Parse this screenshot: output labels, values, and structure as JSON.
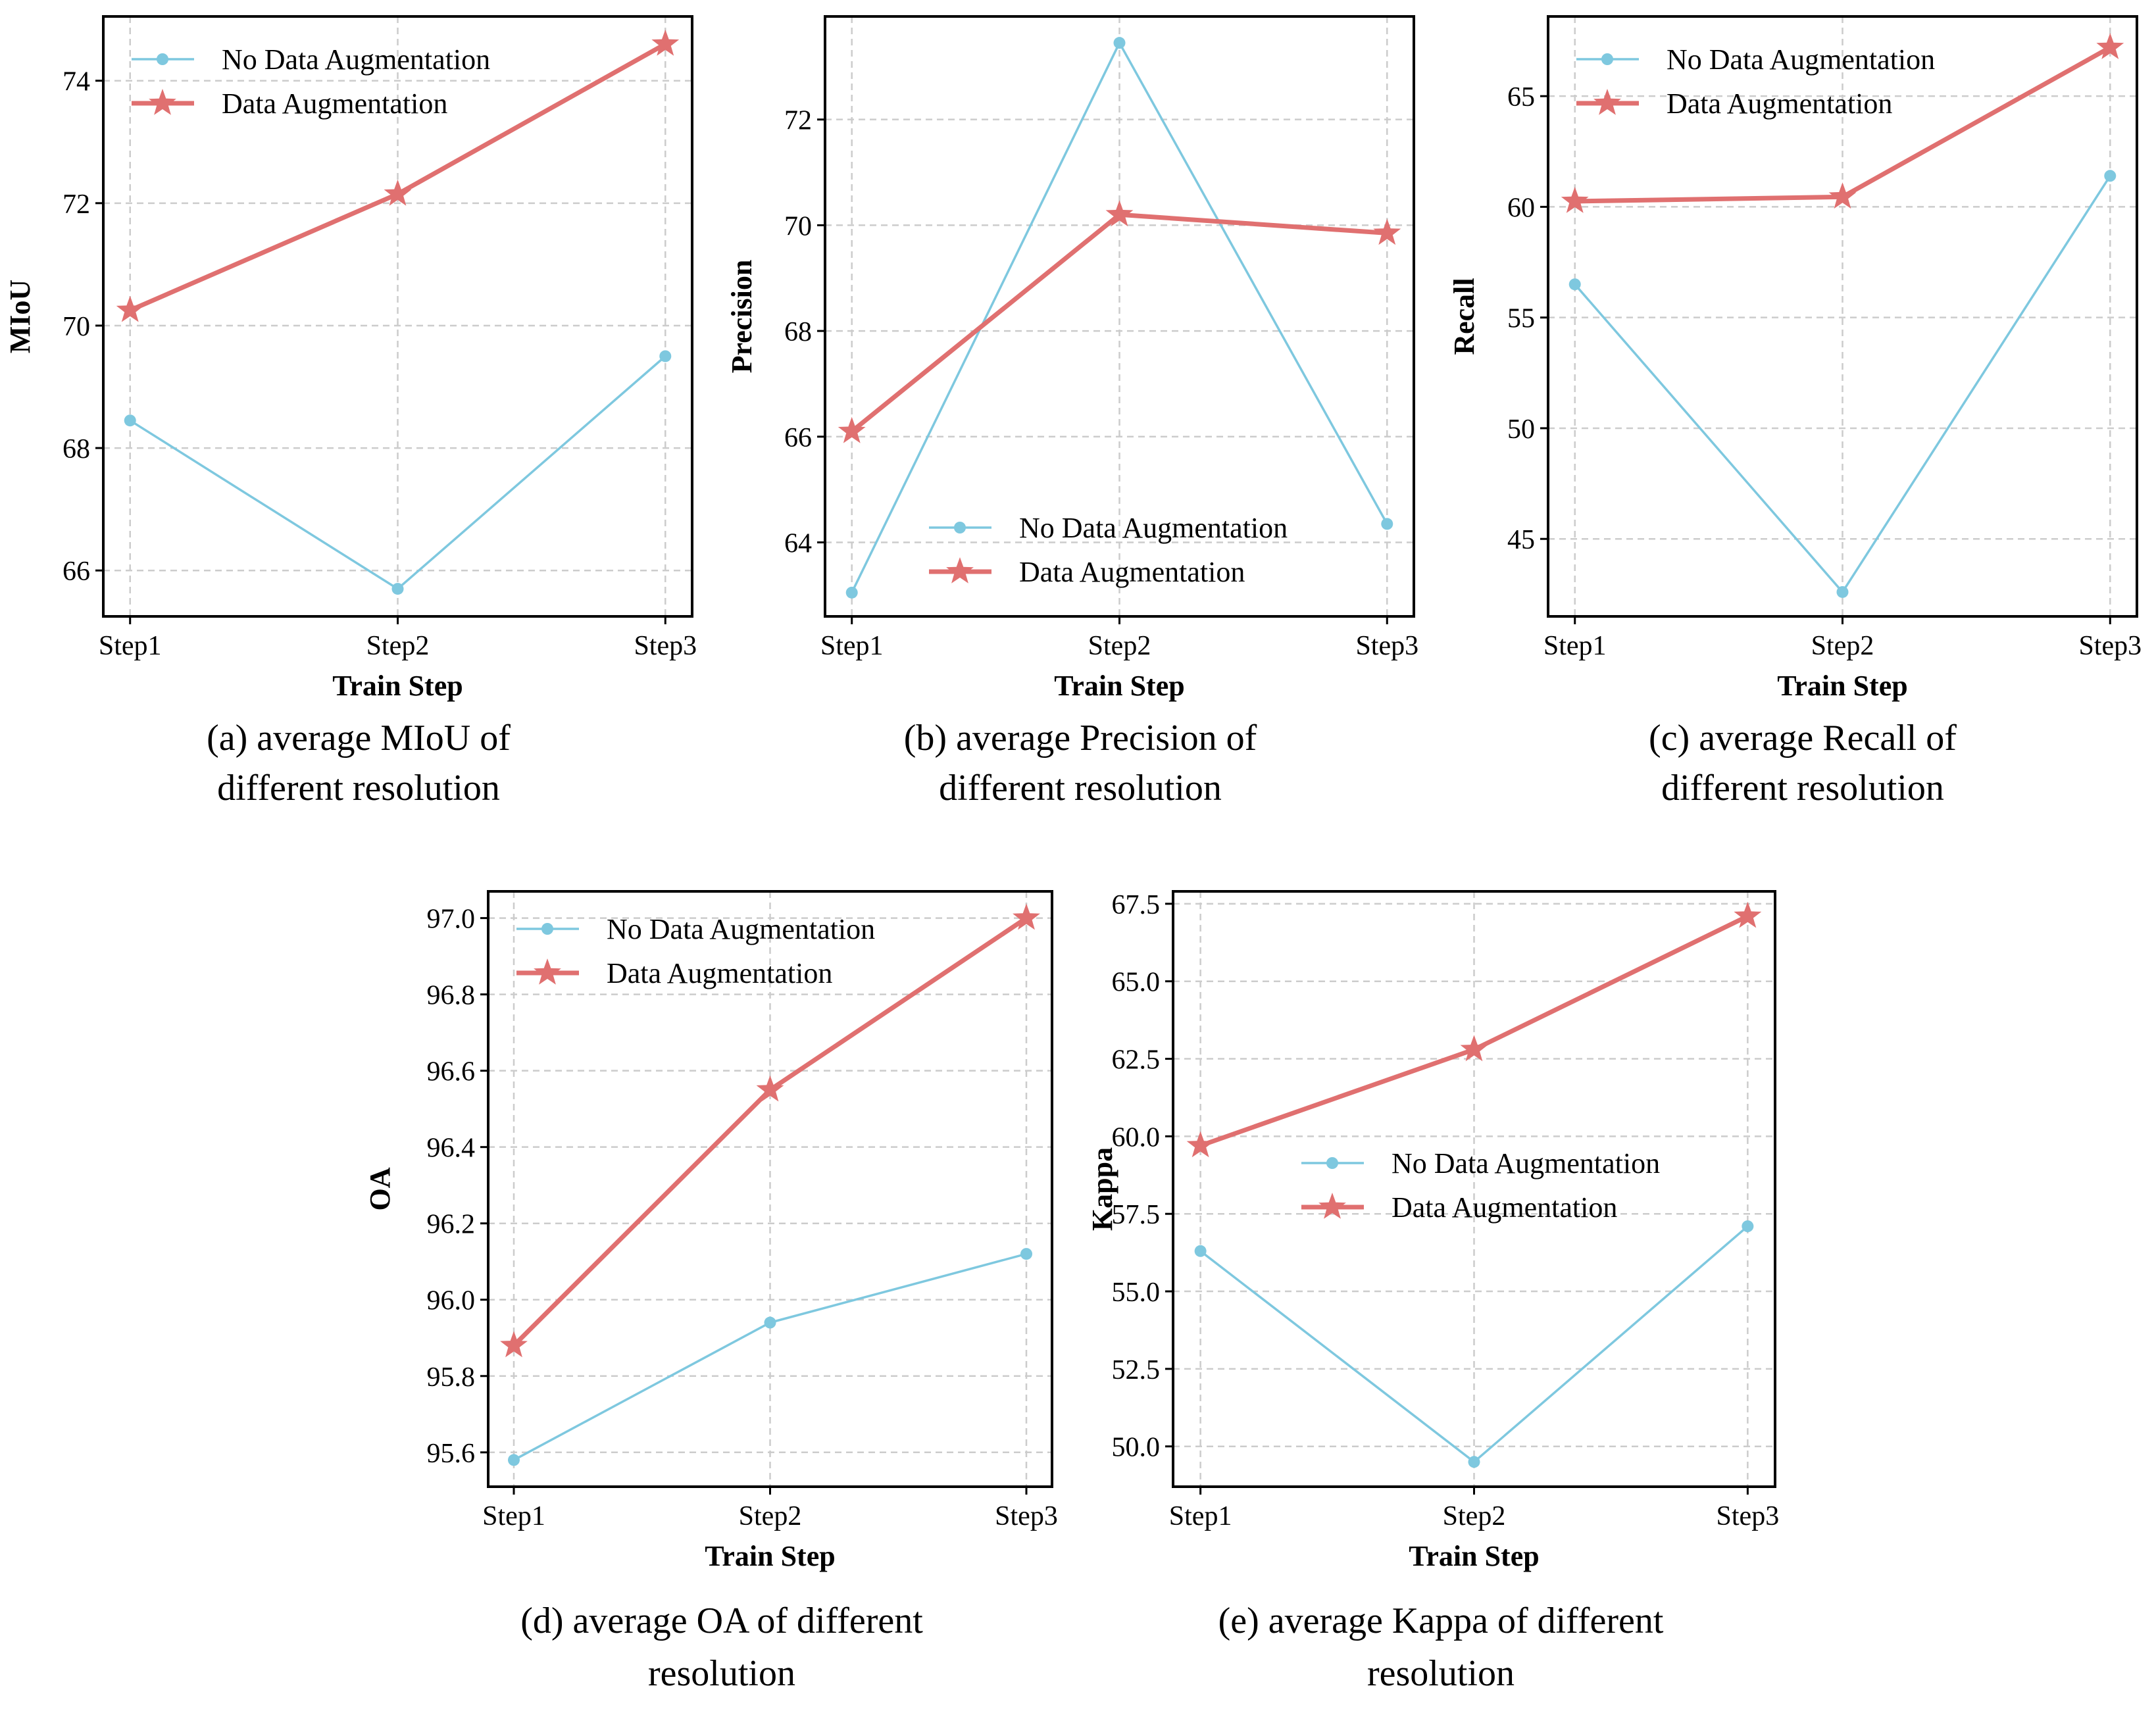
{
  "colors": {
    "no_aug": "#7EC8DF",
    "aug": "#E07070",
    "grid": "#cccccc",
    "frame": "#000000"
  },
  "series_names": [
    "No Data Augmentation",
    "Data Augmentation"
  ],
  "chart_data": [
    {
      "id": "a",
      "type": "line",
      "caption": [
        "(a) average MIoU of",
        "different resolution"
      ],
      "xlabel": "Train Step",
      "ylabel": "MIoU",
      "categories": [
        "Step1",
        "Step2",
        "Step3"
      ],
      "ylim": [
        65.25,
        75.05
      ],
      "yticks": [
        66,
        68,
        70,
        72,
        74
      ],
      "tick_format": 0,
      "legend_loc": "upper-left",
      "grid": true,
      "series": [
        {
          "name": "No Data Augmentation",
          "marker": "circle",
          "values": [
            68.45,
            65.7,
            69.5
          ]
        },
        {
          "name": "Data Augmentation",
          "marker": "star",
          "values": [
            70.25,
            72.15,
            74.6
          ]
        }
      ]
    },
    {
      "id": "b",
      "type": "line",
      "caption": [
        "(b) average Precision of",
        "different resolution"
      ],
      "xlabel": "Train Step",
      "ylabel": "Precision",
      "categories": [
        "Step1",
        "Step2",
        "Step3"
      ],
      "ylim": [
        62.6,
        73.95
      ],
      "yticks": [
        64,
        66,
        68,
        70,
        72
      ],
      "tick_format": 0,
      "legend_loc": "lower-center",
      "grid": true,
      "series": [
        {
          "name": "No Data Augmentation",
          "marker": "circle",
          "values": [
            63.05,
            73.45,
            64.35
          ]
        },
        {
          "name": "Data Augmentation",
          "marker": "star",
          "values": [
            66.1,
            70.2,
            69.85
          ]
        }
      ]
    },
    {
      "id": "c",
      "type": "line",
      "caption": [
        "(c)  average Recall of",
        "different resolution"
      ],
      "xlabel": "Train Step",
      "ylabel": "Recall",
      "categories": [
        "Step1",
        "Step2",
        "Step3"
      ],
      "ylim": [
        41.5,
        68.6
      ],
      "yticks": [
        45,
        50,
        55,
        60,
        65
      ],
      "tick_format": 0,
      "legend_loc": "upper-left",
      "grid": true,
      "series": [
        {
          "name": "No Data Augmentation",
          "marker": "circle",
          "values": [
            56.5,
            42.6,
            61.4
          ]
        },
        {
          "name": "Data Augmentation",
          "marker": "star",
          "values": [
            60.25,
            60.45,
            67.2
          ]
        }
      ]
    },
    {
      "id": "d",
      "type": "line",
      "caption": [
        "(d) average OA of different",
        "resolution"
      ],
      "xlabel": "Train Step",
      "ylabel": "OA",
      "categories": [
        "Step1",
        "Step2",
        "Step3"
      ],
      "ylim": [
        95.51,
        97.07
      ],
      "yticks": [
        95.6,
        95.8,
        96.0,
        96.2,
        96.4,
        96.6,
        96.8,
        97.0
      ],
      "tick_format": 1,
      "legend_loc": "upper-left",
      "grid": true,
      "series": [
        {
          "name": "No Data Augmentation",
          "marker": "circle",
          "values": [
            95.58,
            95.94,
            96.12
          ]
        },
        {
          "name": "Data Augmentation",
          "marker": "star",
          "values": [
            95.88,
            96.55,
            97.0
          ]
        }
      ]
    },
    {
      "id": "e",
      "type": "line",
      "caption": [
        "(e) average Kappa of different",
        "resolution"
      ],
      "xlabel": "Train Step",
      "ylabel": "Kappa",
      "categories": [
        "Step1",
        "Step2",
        "Step3"
      ],
      "ylim": [
        48.7,
        67.9
      ],
      "yticks": [
        50.0,
        52.5,
        55.0,
        57.5,
        60.0,
        62.5,
        65.0,
        67.5
      ],
      "tick_format": 1,
      "legend_loc": "center",
      "grid": true,
      "series": [
        {
          "name": "No Data Augmentation",
          "marker": "circle",
          "values": [
            56.3,
            49.5,
            57.1
          ]
        },
        {
          "name": "Data Augmentation",
          "marker": "star",
          "values": [
            59.7,
            62.8,
            67.1
          ]
        }
      ]
    }
  ]
}
